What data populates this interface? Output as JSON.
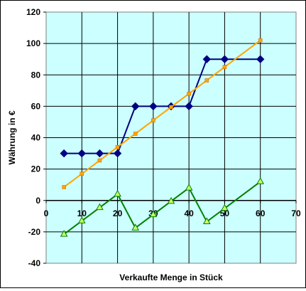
{
  "chart_data": {
    "type": "line",
    "title": "",
    "xlabel": "Verkaufte Menge in Stück",
    "ylabel": "Währung in €",
    "xlim": [
      0,
      70
    ],
    "ylim": [
      -40,
      120
    ],
    "x_ticks": [
      0,
      10,
      20,
      30,
      40,
      50,
      60,
      70
    ],
    "y_ticks": [
      -40,
      -20,
      0,
      20,
      40,
      60,
      80,
      100,
      120
    ],
    "grid": true,
    "legend": "none",
    "plot_background": "#ccffff",
    "series": [
      {
        "color": "#000080",
        "marker": "diamond",
        "x": [
          5,
          10,
          15,
          20,
          25,
          30,
          35,
          40,
          45,
          50,
          60
        ],
        "y": [
          30,
          30,
          30,
          30,
          60,
          60,
          60,
          60,
          90,
          90,
          90
        ]
      },
      {
        "color": "#ffa500",
        "marker": "square",
        "x": [
          5,
          10,
          15,
          20,
          25,
          30,
          35,
          40,
          45,
          50,
          60
        ],
        "y": [
          8.5,
          17,
          25.5,
          34,
          42.5,
          51,
          59.5,
          68,
          76.5,
          85,
          102
        ]
      },
      {
        "color": "#008000",
        "marker": "triangle",
        "x": [
          5,
          10,
          15,
          20,
          25,
          30,
          35,
          40,
          45,
          50,
          60
        ],
        "y": [
          -21.5,
          -13,
          -4.5,
          4,
          -17.5,
          -9,
          -0.5,
          8,
          -13.5,
          -5,
          12
        ]
      }
    ]
  }
}
